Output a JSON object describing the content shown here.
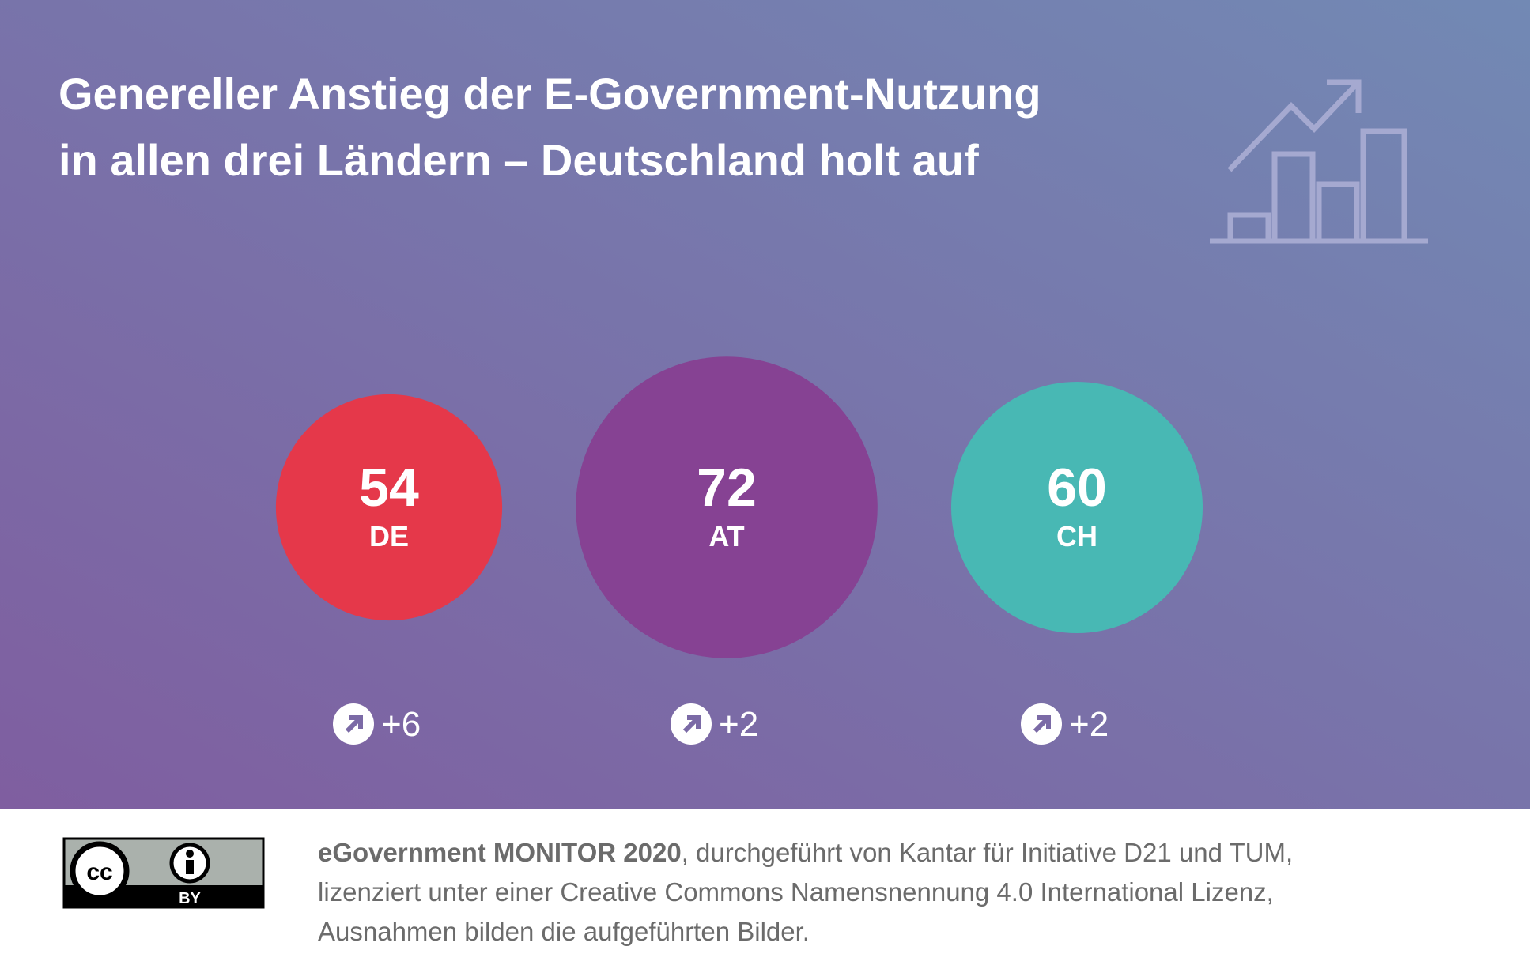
{
  "chart_data": {
    "type": "bubble",
    "title_lines": [
      "Genereller Anstieg der E-Government-Nutzung",
      "in allen drei Ländern – Deutschland holt auf"
    ],
    "categories": [
      "DE",
      "AT",
      "CH"
    ],
    "values": [
      54,
      72,
      60
    ],
    "colors": [
      "#e5384a",
      "#864293",
      "#48b8b4"
    ],
    "changes": [
      6,
      2,
      2
    ],
    "change_labels": [
      "+6",
      "+2",
      "+2"
    ]
  },
  "footer": {
    "source_bold": "eGovernment MONITOR 2020",
    "source_lines": [
      ", durchgeführt von Kantar für Initiative D21 und TUM,",
      "lizenziert unter einer Creative Commons Namensnennung 4.0 International Lizenz,",
      "Ausnahmen bilden die aufgeführten Bilder."
    ],
    "badge_logo": "cc",
    "badge_label": "BY"
  }
}
